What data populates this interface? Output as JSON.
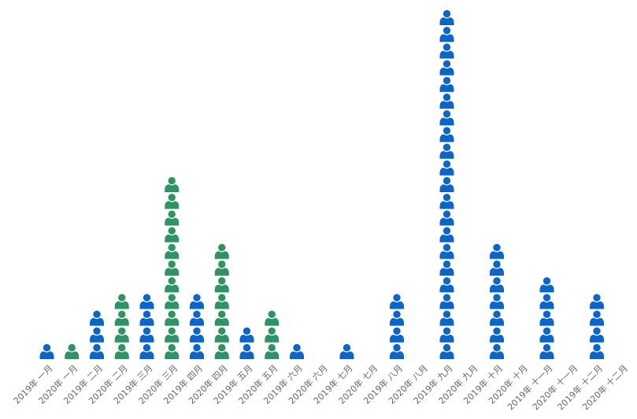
{
  "chart_data": {
    "type": "bar",
    "style": "pictograph",
    "icon": "person-icon",
    "categories": [
      "2019年 一月",
      "2020年 一月",
      "2019年 二月",
      "2020年 二月",
      "2019年 三月",
      "2020年 三月",
      "2019年 四月",
      "2020年 四月",
      "2019年 五月",
      "2020年 五月",
      "2019年 六月",
      "2020年 六月",
      "2019年 七月",
      "2020年 七月",
      "2019年 八月",
      "2020年 八月",
      "2019年 九月",
      "2020年 九月",
      "2019年 十月",
      "2020年 十月",
      "2019年 十一月",
      "2020年 十一月",
      "2019年 十二月",
      "2020年 十二月"
    ],
    "values": [
      1,
      1,
      3,
      4,
      4,
      11,
      4,
      7,
      2,
      3,
      1,
      0,
      1,
      0,
      4,
      0,
      21,
      0,
      7,
      0,
      5,
      0,
      4,
      0
    ],
    "colors": [
      "#0a66c8",
      "#2e9466",
      "#0a66c8",
      "#2e9466",
      "#0a66c8",
      "#2e9466",
      "#0a66c8",
      "#2e9466",
      "#0a66c8",
      "#2e9466",
      "#0a66c8",
      "#2e9466",
      "#0a66c8",
      "#2e9466",
      "#0a66c8",
      "#2e9466",
      "#0a66c8",
      "#2e9466",
      "#0a66c8",
      "#2e9466",
      "#0a66c8",
      "#2e9466",
      "#0a66c8",
      "#2e9466"
    ],
    "title": "",
    "xlabel": "",
    "ylabel": "",
    "grid": false,
    "legend": "none"
  }
}
